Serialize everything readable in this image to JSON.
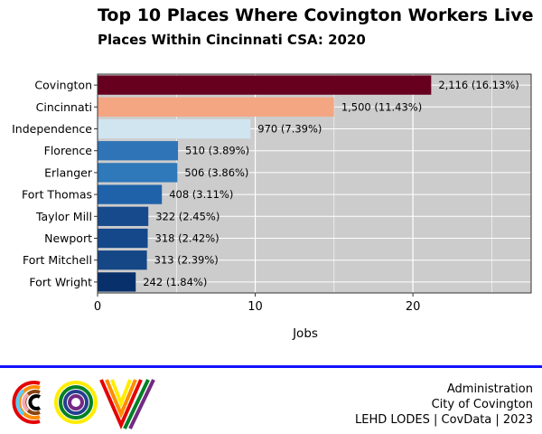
{
  "header": {
    "title": "Top 10 Places Where Covington Workers Live",
    "subtitle": "Places Within Cincinnati CSA: 2020"
  },
  "chart_data": {
    "type": "bar",
    "orientation": "horizontal",
    "title": "Top 10 Places Where Covington Workers Live",
    "subtitle": "Places Within Cincinnati CSA: 2020",
    "xlabel": "Jobs",
    "ylabel": "",
    "x_ticks": [
      "0",
      "10",
      "20"
    ],
    "xlim": [
      0,
      27.5
    ],
    "x_unit_note": "values shown in hundreds of jobs on axis",
    "grid": true,
    "categories": [
      "Covington",
      "Cincinnati",
      "Independence",
      "Florence",
      "Erlanger",
      "Fort Thomas",
      "Taylor Mill",
      "Newport",
      "Fort Mitchell",
      "Fort Wright"
    ],
    "values": [
      2116,
      1500,
      970,
      510,
      506,
      408,
      322,
      318,
      313,
      242
    ],
    "data_labels": [
      "2,116 (16.13%)",
      "1,500 (11.43%)",
      "970 (7.39%)",
      "510 (3.89%)",
      "506 (3.86%)",
      "408 (3.11%)",
      "322 (2.45%)",
      "318 (2.42%)",
      "313 (2.39%)",
      "242 (1.84%)"
    ],
    "bar_colors": [
      "#67001f",
      "#f4a582",
      "#d1e5f0",
      "#2e74b6",
      "#2f78ba",
      "#1f62a9",
      "#174a8c",
      "#15488a",
      "#154786",
      "#08306b"
    ],
    "panel_color": "#cccccc",
    "grid_color": "#ffffff"
  },
  "footer": {
    "lines": [
      "Administration",
      "City of Covington",
      "LEHD LODES | CovData | 2023"
    ],
    "logo_text": "COV"
  }
}
